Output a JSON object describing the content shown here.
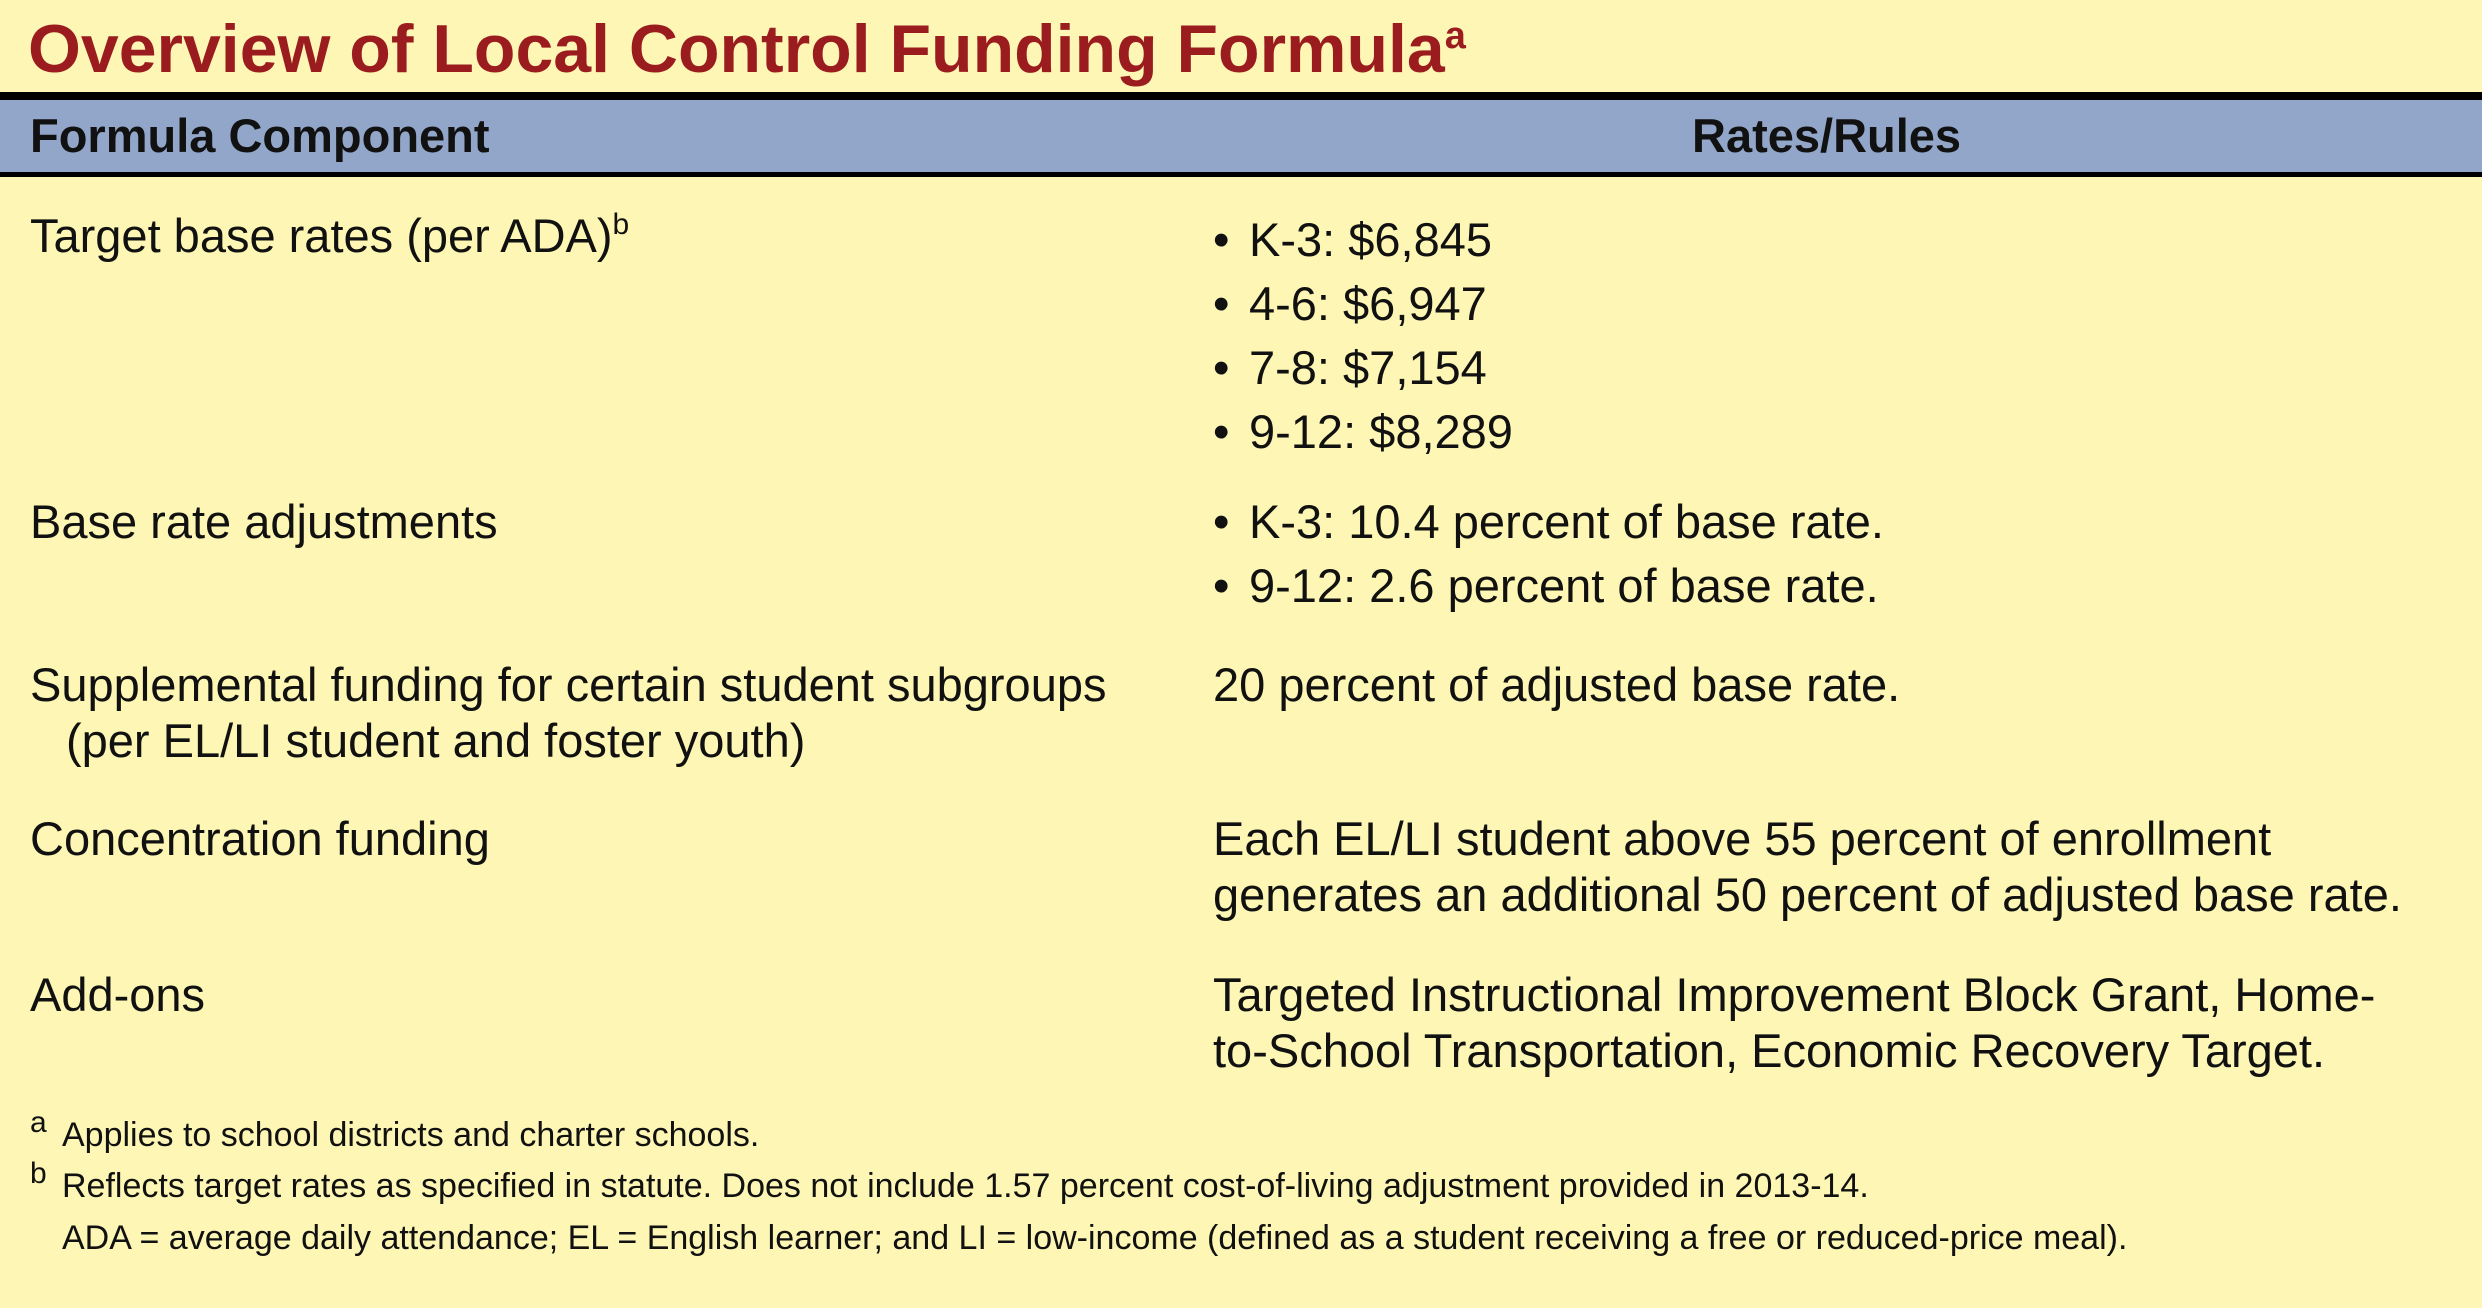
{
  "title": {
    "text": "Overview of Local Control Funding Formula",
    "note_mark": "a"
  },
  "header": {
    "col1": "Formula Component",
    "col2": "Rates/Rules"
  },
  "rows": [
    {
      "label": "Target base rates (per ADA)",
      "note_mark": "b",
      "bullets": [
        "K-3: $6,845",
        "4-6: $6,947",
        "7-8: $7,154",
        "9-12: $8,289"
      ]
    },
    {
      "label": "Base rate adjustments",
      "bullets": [
        "K-3: 10.4 percent of base rate.",
        "9-12: 2.6 percent of base rate."
      ]
    },
    {
      "label_line1": "Supplemental funding for certain student subgroups",
      "label_line2": "(per EL/LI student and foster youth)",
      "rate": "20 percent of adjusted base rate."
    },
    {
      "label": "Concentration funding",
      "rate_line1": "Each EL/LI student above 55 percent of enrollment",
      "rate_line2": "generates an additional 50 percent of adjusted base rate."
    },
    {
      "label": "Add-ons",
      "rate_line1": "Targeted Instructional Improvement Block Grant, Home-",
      "rate_line2": "to-School Transportation, Economic Recovery Target."
    }
  ],
  "footnotes": [
    {
      "mark": "a",
      "text": "Applies to school districts and charter schools."
    },
    {
      "mark": "b",
      "text": "Reflects target rates as specified in statute. Does not include 1.57 percent cost-of-living adjustment provided in 2013-14."
    },
    {
      "mark": "",
      "text": "ADA = average daily attendance; EL = English learner; and LI = low-income (defined as a student receiving a free or reduced-price meal)."
    }
  ],
  "colors": {
    "background": "#fdf6b4",
    "title": "#9a1c1f",
    "header_bar": "#92a6c9"
  }
}
